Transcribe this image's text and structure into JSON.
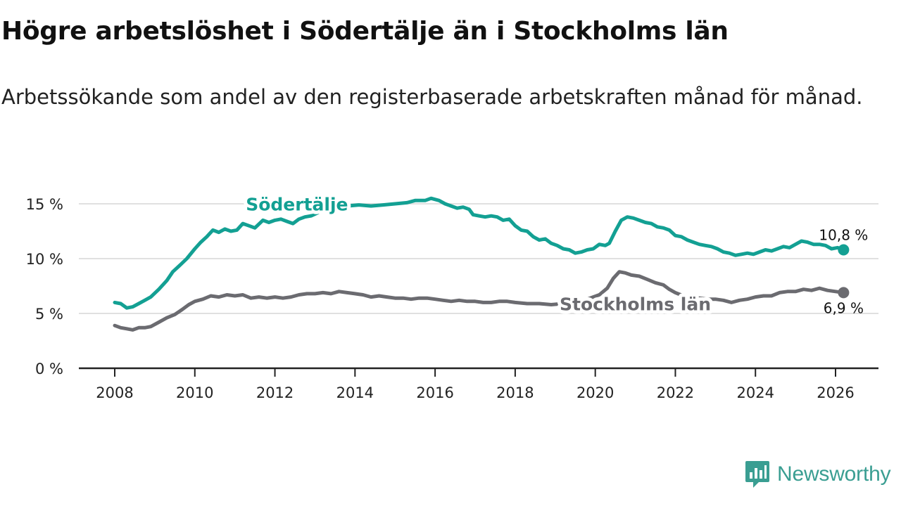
{
  "header": {
    "title": "Högre arbetslöshet i Södertälje än i Stockholms län",
    "subtitle": "Arbetssökande som andel av den registerbaserade arbetskraften månad för månad."
  },
  "brand": {
    "name": "Newsworthy",
    "icon": "newsworthy-logo-icon",
    "color": "#3a9e92"
  },
  "chart_data": {
    "type": "line",
    "title": "Högre arbetslöshet i Södertälje än i Stockholms län",
    "xlabel": "",
    "ylabel": "",
    "xlim": [
      2007.5,
      2027.5
    ],
    "ylim": [
      0,
      15.5
    ],
    "x_ticks": [
      2008,
      2010,
      2012,
      2014,
      2016,
      2018,
      2020,
      2022,
      2024,
      2026
    ],
    "y_ticks": [
      {
        "value": 0,
        "label": "0 %"
      },
      {
        "value": 5,
        "label": "5 %"
      },
      {
        "value": 10,
        "label": "10 %"
      },
      {
        "value": 15,
        "label": "15 %"
      }
    ],
    "grid": true,
    "series": [
      {
        "name": "Södertälje",
        "color": "#13a093",
        "end_label": "10,8 %",
        "points": [
          [
            2008.0,
            6.0
          ],
          [
            2008.15,
            5.9
          ],
          [
            2008.3,
            5.5
          ],
          [
            2008.45,
            5.6
          ],
          [
            2008.6,
            5.9
          ],
          [
            2008.75,
            6.2
          ],
          [
            2008.9,
            6.5
          ],
          [
            2009.1,
            7.2
          ],
          [
            2009.3,
            8.0
          ],
          [
            2009.45,
            8.8
          ],
          [
            2009.6,
            9.3
          ],
          [
            2009.8,
            10.0
          ],
          [
            2010.0,
            10.9
          ],
          [
            2010.15,
            11.5
          ],
          [
            2010.3,
            12.0
          ],
          [
            2010.45,
            12.6
          ],
          [
            2010.6,
            12.4
          ],
          [
            2010.75,
            12.7
          ],
          [
            2010.9,
            12.5
          ],
          [
            2011.05,
            12.6
          ],
          [
            2011.2,
            13.2
          ],
          [
            2011.35,
            13.0
          ],
          [
            2011.5,
            12.8
          ],
          [
            2011.7,
            13.5
          ],
          [
            2011.85,
            13.3
          ],
          [
            2012.0,
            13.5
          ],
          [
            2012.15,
            13.6
          ],
          [
            2012.3,
            13.4
          ],
          [
            2012.45,
            13.2
          ],
          [
            2012.6,
            13.6
          ],
          [
            2012.75,
            13.8
          ],
          [
            2012.9,
            13.9
          ],
          [
            2013.2,
            14.4
          ],
          [
            2013.5,
            14.7
          ],
          [
            2013.8,
            14.8
          ],
          [
            2014.1,
            14.9
          ],
          [
            2014.4,
            14.8
          ],
          [
            2014.7,
            14.9
          ],
          [
            2015.0,
            15.0
          ],
          [
            2015.3,
            15.1
          ],
          [
            2015.5,
            15.3
          ],
          [
            2015.75,
            15.3
          ],
          [
            2015.9,
            15.5
          ],
          [
            2016.1,
            15.3
          ],
          [
            2016.25,
            15.0
          ],
          [
            2016.4,
            14.8
          ],
          [
            2016.55,
            14.6
          ],
          [
            2016.7,
            14.7
          ],
          [
            2016.85,
            14.5
          ],
          [
            2016.95,
            14.0
          ],
          [
            2017.1,
            13.9
          ],
          [
            2017.25,
            13.8
          ],
          [
            2017.4,
            13.9
          ],
          [
            2017.55,
            13.8
          ],
          [
            2017.7,
            13.5
          ],
          [
            2017.85,
            13.6
          ],
          [
            2018.0,
            13.0
          ],
          [
            2018.15,
            12.6
          ],
          [
            2018.3,
            12.5
          ],
          [
            2018.45,
            12.0
          ],
          [
            2018.6,
            11.7
          ],
          [
            2018.75,
            11.8
          ],
          [
            2018.9,
            11.4
          ],
          [
            2019.05,
            11.2
          ],
          [
            2019.2,
            10.9
          ],
          [
            2019.35,
            10.8
          ],
          [
            2019.5,
            10.5
          ],
          [
            2019.65,
            10.6
          ],
          [
            2019.8,
            10.8
          ],
          [
            2019.95,
            10.9
          ],
          [
            2020.1,
            11.3
          ],
          [
            2020.25,
            11.2
          ],
          [
            2020.35,
            11.4
          ],
          [
            2020.5,
            12.5
          ],
          [
            2020.65,
            13.5
          ],
          [
            2020.8,
            13.8
          ],
          [
            2020.95,
            13.7
          ],
          [
            2021.1,
            13.5
          ],
          [
            2021.25,
            13.3
          ],
          [
            2021.4,
            13.2
          ],
          [
            2021.55,
            12.9
          ],
          [
            2021.7,
            12.8
          ],
          [
            2021.85,
            12.6
          ],
          [
            2022.0,
            12.1
          ],
          [
            2022.15,
            12.0
          ],
          [
            2022.3,
            11.7
          ],
          [
            2022.45,
            11.5
          ],
          [
            2022.6,
            11.3
          ],
          [
            2022.75,
            11.2
          ],
          [
            2022.9,
            11.1
          ],
          [
            2023.05,
            10.9
          ],
          [
            2023.2,
            10.6
          ],
          [
            2023.35,
            10.5
          ],
          [
            2023.5,
            10.3
          ],
          [
            2023.65,
            10.4
          ],
          [
            2023.8,
            10.5
          ],
          [
            2023.95,
            10.4
          ],
          [
            2024.1,
            10.6
          ],
          [
            2024.25,
            10.8
          ],
          [
            2024.4,
            10.7
          ],
          [
            2024.55,
            10.9
          ],
          [
            2024.7,
            11.1
          ],
          [
            2024.85,
            11.0
          ],
          [
            2025.0,
            11.3
          ],
          [
            2025.15,
            11.6
          ],
          [
            2025.3,
            11.5
          ],
          [
            2025.45,
            11.3
          ],
          [
            2025.6,
            11.3
          ],
          [
            2025.75,
            11.2
          ],
          [
            2025.9,
            10.9
          ],
          [
            2026.05,
            11.0
          ],
          [
            2026.2,
            10.8
          ]
        ]
      },
      {
        "name": "Stockholms län",
        "color": "#6b6b70",
        "end_label": "6,9 %",
        "points": [
          [
            2008.0,
            3.9
          ],
          [
            2008.15,
            3.7
          ],
          [
            2008.3,
            3.6
          ],
          [
            2008.45,
            3.5
          ],
          [
            2008.6,
            3.7
          ],
          [
            2008.75,
            3.7
          ],
          [
            2008.9,
            3.8
          ],
          [
            2009.1,
            4.2
          ],
          [
            2009.3,
            4.6
          ],
          [
            2009.5,
            4.9
          ],
          [
            2009.7,
            5.4
          ],
          [
            2009.85,
            5.8
          ],
          [
            2010.0,
            6.1
          ],
          [
            2010.2,
            6.3
          ],
          [
            2010.4,
            6.6
          ],
          [
            2010.6,
            6.5
          ],
          [
            2010.8,
            6.7
          ],
          [
            2011.0,
            6.6
          ],
          [
            2011.2,
            6.7
          ],
          [
            2011.4,
            6.4
          ],
          [
            2011.6,
            6.5
          ],
          [
            2011.8,
            6.4
          ],
          [
            2012.0,
            6.5
          ],
          [
            2012.2,
            6.4
          ],
          [
            2012.4,
            6.5
          ],
          [
            2012.6,
            6.7
          ],
          [
            2012.8,
            6.8
          ],
          [
            2013.0,
            6.8
          ],
          [
            2013.2,
            6.9
          ],
          [
            2013.4,
            6.8
          ],
          [
            2013.6,
            7.0
          ],
          [
            2013.8,
            6.9
          ],
          [
            2014.0,
            6.8
          ],
          [
            2014.2,
            6.7
          ],
          [
            2014.4,
            6.5
          ],
          [
            2014.6,
            6.6
          ],
          [
            2014.8,
            6.5
          ],
          [
            2015.0,
            6.4
          ],
          [
            2015.2,
            6.4
          ],
          [
            2015.4,
            6.3
          ],
          [
            2015.6,
            6.4
          ],
          [
            2015.8,
            6.4
          ],
          [
            2016.0,
            6.3
          ],
          [
            2016.2,
            6.2
          ],
          [
            2016.4,
            6.1
          ],
          [
            2016.6,
            6.2
          ],
          [
            2016.8,
            6.1
          ],
          [
            2017.0,
            6.1
          ],
          [
            2017.2,
            6.0
          ],
          [
            2017.4,
            6.0
          ],
          [
            2017.6,
            6.1
          ],
          [
            2017.8,
            6.1
          ],
          [
            2018.0,
            6.0
          ],
          [
            2018.3,
            5.9
          ],
          [
            2018.6,
            5.9
          ],
          [
            2018.9,
            5.8
          ],
          [
            2019.2,
            5.9
          ],
          [
            2019.5,
            6.0
          ],
          [
            2019.8,
            6.3
          ],
          [
            2020.1,
            6.7
          ],
          [
            2020.3,
            7.3
          ],
          [
            2020.45,
            8.2
          ],
          [
            2020.6,
            8.8
          ],
          [
            2020.75,
            8.7
          ],
          [
            2020.9,
            8.5
          ],
          [
            2021.1,
            8.4
          ],
          [
            2021.3,
            8.1
          ],
          [
            2021.5,
            7.8
          ],
          [
            2021.7,
            7.6
          ],
          [
            2021.85,
            7.2
          ],
          [
            2022.0,
            6.9
          ],
          [
            2022.2,
            6.6
          ],
          [
            2022.4,
            6.5
          ],
          [
            2022.6,
            6.4
          ],
          [
            2022.8,
            6.3
          ],
          [
            2023.0,
            6.3
          ],
          [
            2023.2,
            6.2
          ],
          [
            2023.4,
            6.0
          ],
          [
            2023.6,
            6.2
          ],
          [
            2023.8,
            6.3
          ],
          [
            2024.0,
            6.5
          ],
          [
            2024.2,
            6.6
          ],
          [
            2024.4,
            6.6
          ],
          [
            2024.6,
            6.9
          ],
          [
            2024.8,
            7.0
          ],
          [
            2025.0,
            7.0
          ],
          [
            2025.2,
            7.2
          ],
          [
            2025.4,
            7.1
          ],
          [
            2025.6,
            7.3
          ],
          [
            2025.8,
            7.1
          ],
          [
            2026.0,
            7.0
          ],
          [
            2026.2,
            6.9
          ]
        ]
      }
    ]
  }
}
